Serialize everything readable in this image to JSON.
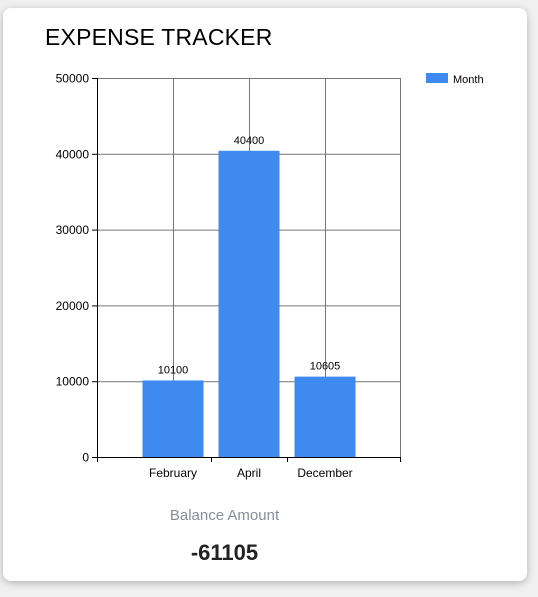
{
  "app": {
    "title": "EXPENSE TRACKER"
  },
  "balance": {
    "label": "Balance Amount",
    "value": "-61105"
  },
  "colors": {
    "bar": "#3f8af0",
    "grid": "#777777",
    "card_bg": "#ffffff",
    "balance_label": "#858d99"
  },
  "chart_data": {
    "type": "bar",
    "categories": [
      "February",
      "April",
      "December"
    ],
    "series": [
      {
        "name": "Month",
        "values": [
          10100,
          40400,
          10605
        ]
      }
    ],
    "data_labels": [
      "10100",
      "40400",
      "10605"
    ],
    "ylim": [
      0,
      50000
    ],
    "yticks": [
      0,
      10000,
      20000,
      30000,
      40000,
      50000
    ],
    "ytick_labels": [
      "0",
      "10000",
      "20000",
      "30000",
      "40000",
      "50000"
    ],
    "grid": true,
    "legend": "top-right"
  }
}
